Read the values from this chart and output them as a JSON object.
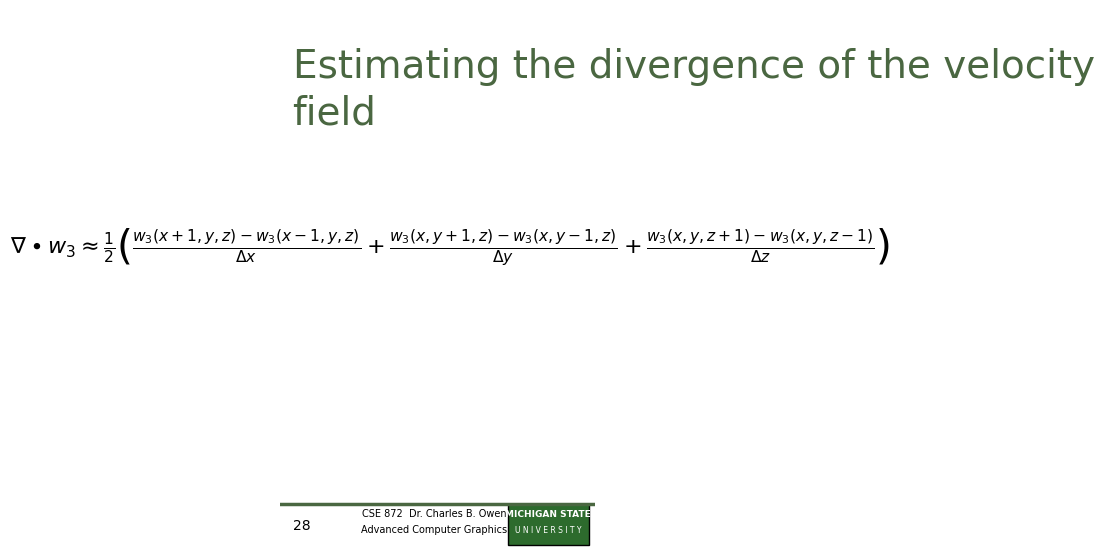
{
  "title": "Estimating the divergence of the velocity\nfield",
  "title_color": "#4a6741",
  "title_fontsize": 28,
  "bg_color": "#ffffff",
  "slide_number": "28",
  "footer_line_color": "#4a6741",
  "footer_text_left": "CSE 872  Dr. Charles B. Owen\nAdvanced Computer Graphics",
  "footer_text_right": "MICHIGAN STATE\nU N I V E R S I T Y",
  "footer_box_color": "#2d6b2d",
  "formula": "\\nabla \\bullet w_3 \\approx \\frac{1}{2} \\left( \\frac{w_3(x+1,y,z) - w_3(x-1,y,z)}{\\Delta x} + \\frac{w_3(x,y+1,z) - w_3(x,y-1,z)}{\\Delta y} + \\frac{w_3(x,y,z+1) - w_3(x,y,z-1)}{\\Delta z} \\right)"
}
